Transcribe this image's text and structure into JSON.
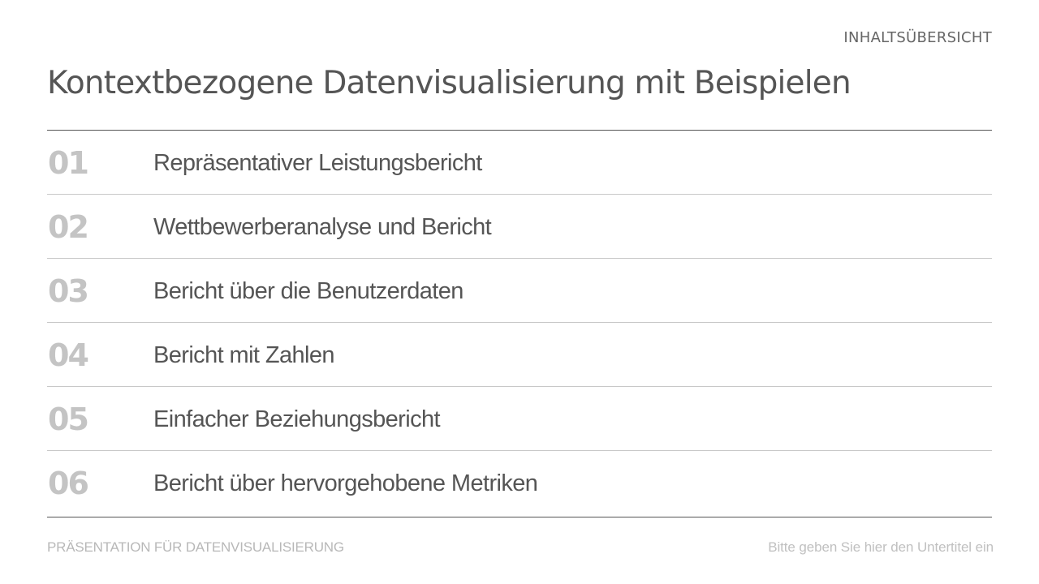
{
  "header": {
    "section_label": "INHALTSÜBERSICHT",
    "title": "Kontextbezogene Datenvisualisierung mit Beispielen"
  },
  "toc": {
    "items": [
      {
        "number": "01",
        "label": "Repräsentativer Leistungsbericht"
      },
      {
        "number": "02",
        "label": "Wettbewerberanalyse und Bericht"
      },
      {
        "number": "03",
        "label": "Bericht über die Benutzerdaten"
      },
      {
        "number": "04",
        "label": "Bericht mit Zahlen"
      },
      {
        "number": "05",
        "label": "Einfacher Beziehungsbericht"
      },
      {
        "number": "06",
        "label": "Bericht über hervorgehobene Metriken"
      }
    ]
  },
  "footer": {
    "left": "PRÄSENTATION FÜR DATENVISUALISIERUNG",
    "right": "Bitte geben Sie hier den Untertitel ein"
  },
  "colors": {
    "title": "#555555",
    "number": "#c4c4c4",
    "rule_dark": "#555555",
    "rule_light": "#c8c8c8",
    "footer": "#b8b8b8"
  }
}
